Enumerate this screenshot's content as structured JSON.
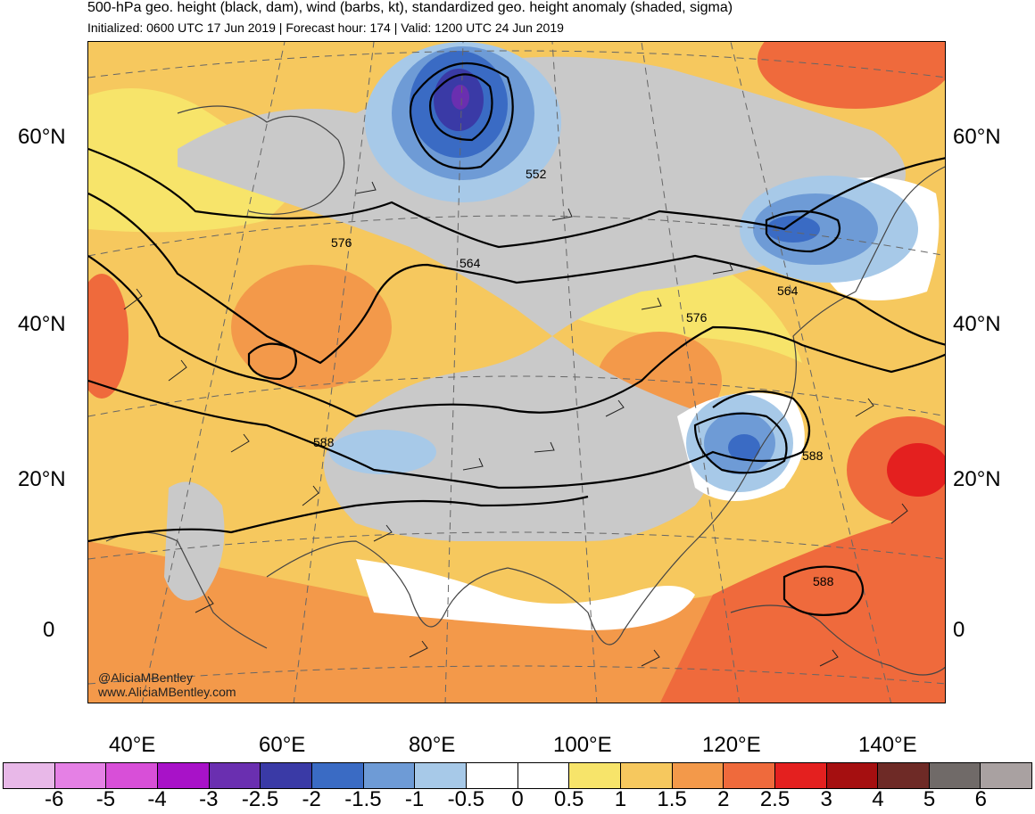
{
  "header": {
    "title": "500-hPa geo. height (black, dam), wind (barbs, kt), standardized geo. height anomaly (shaded, sigma)",
    "subtitle": "Initialized: 0600 UTC 17 Jun 2019 | Forecast hour: 174 | Valid: 1200 UTC 24 Jun 2019"
  },
  "axes": {
    "lat_labels": [
      "60°N",
      "40°N",
      "20°N",
      "0"
    ],
    "lon_labels": [
      "40°E",
      "60°E",
      "80°E",
      "100°E",
      "120°E",
      "140°E"
    ]
  },
  "contour_labels": [
    "552",
    "576",
    "564",
    "564",
    "576",
    "588",
    "588",
    "588"
  ],
  "credit": {
    "handle": "@AliciaMBentley",
    "site": "www.AliciaMBentley.com"
  },
  "colorbar": {
    "labels": [
      "-6",
      "-5",
      "-4",
      "-3",
      "-2.5",
      "-2",
      "-1.5",
      "-1",
      "-0.5",
      "0",
      "0.5",
      "1",
      "1.5",
      "2",
      "2.5",
      "3",
      "4",
      "5",
      "6"
    ],
    "colors": [
      "#e8b8e8",
      "#e580e5",
      "#d84fd8",
      "#a812c8",
      "#6a2fb0",
      "#3a3aa6",
      "#3a6bc4",
      "#6e9bd6",
      "#a7c9e8",
      "#ffffff",
      "#ffffff",
      "#f7e46a",
      "#f6c85e",
      "#f3994a",
      "#ef6a3c",
      "#e4201f",
      "#a50f10",
      "#6e2a26",
      "#706a68",
      "#a9a1a1"
    ]
  }
}
